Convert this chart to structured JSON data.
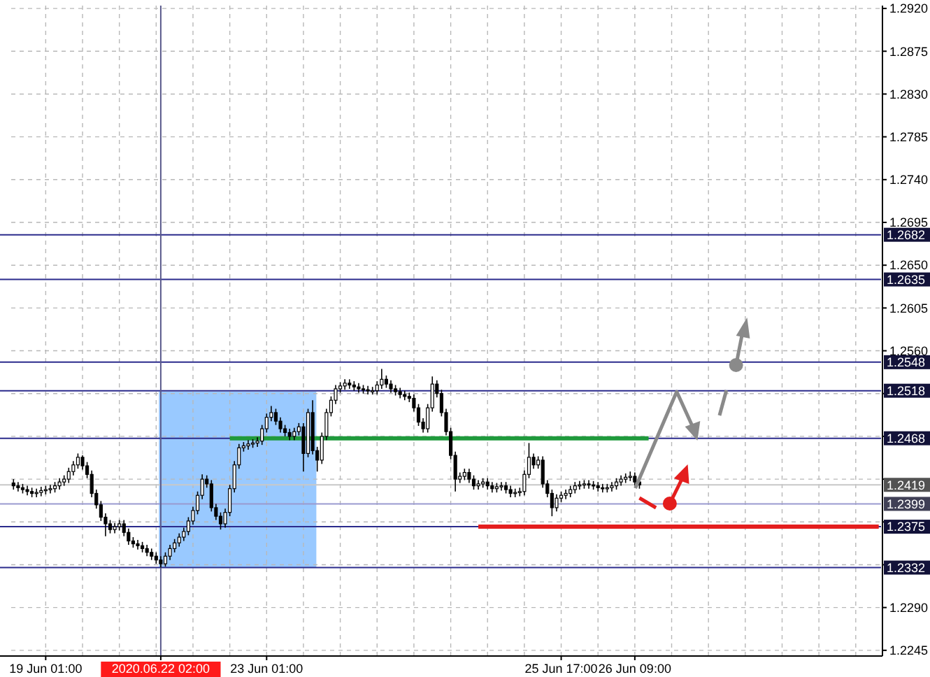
{
  "chart_data": {
    "type": "candlestick",
    "categories": [
      null,
      null,
      null,
      null,
      null,
      null,
      null,
      "19 Jun 01:00",
      null,
      null,
      null,
      null,
      null,
      null,
      null,
      null,
      null,
      null,
      null,
      null,
      null,
      null,
      null,
      null,
      null,
      null,
      null,
      null,
      null,
      null,
      null,
      null,
      "2020.06.22 02:00",
      null,
      null,
      null,
      null,
      null,
      null,
      null,
      null,
      null,
      null,
      null,
      null,
      null,
      null,
      null,
      null,
      null,
      null,
      null,
      null,
      null,
      null,
      "23 Jun 01:00",
      null,
      null,
      null,
      null,
      null,
      null,
      null,
      null,
      null,
      null,
      null,
      null,
      null,
      null,
      null,
      null,
      null,
      null,
      null,
      null,
      null,
      null,
      null,
      null,
      null,
      null,
      null,
      null,
      null,
      null,
      null,
      null,
      null,
      null,
      null,
      null,
      null,
      null,
      null,
      null,
      null,
      null,
      null,
      null,
      null,
      null,
      null,
      null,
      null,
      null,
      null,
      null,
      null,
      null,
      null,
      null,
      null,
      null,
      null,
      null,
      null,
      null,
      null,
      "25 Jun 17:00",
      null,
      null,
      null,
      null,
      null,
      null,
      null,
      null,
      null,
      null,
      null,
      null,
      null,
      null,
      null,
      "26 Jun 09:00",
      null,
      null,
      null,
      null,
      null,
      null,
      null,
      null,
      null,
      null,
      null,
      null,
      null,
      null,
      null,
      null,
      null,
      null,
      null,
      null,
      null,
      null,
      null,
      null,
      null,
      null,
      null,
      null,
      null,
      null,
      null,
      null,
      null,
      null,
      null,
      null,
      null,
      null,
      null,
      null,
      null,
      null,
      null,
      null,
      null,
      null,
      null,
      null,
      null,
      null,
      null,
      null,
      null
    ],
    "ohlc": [
      [
        1.2421,
        1.2425,
        1.2414,
        1.2418
      ],
      [
        1.2418,
        1.2422,
        1.2412,
        1.2416
      ],
      [
        1.2416,
        1.242,
        1.241,
        1.2414
      ],
      [
        1.2414,
        1.2418,
        1.2408,
        1.2412
      ],
      [
        1.2412,
        1.2416,
        1.2406,
        1.241
      ],
      [
        1.241,
        1.2415,
        1.2406,
        1.2411
      ],
      [
        1.2411,
        1.2417,
        1.2407,
        1.2413
      ],
      [
        1.2413,
        1.2418,
        1.2409,
        1.2414
      ],
      [
        1.2414,
        1.2419,
        1.241,
        1.2415
      ],
      [
        1.2415,
        1.2422,
        1.2411,
        1.2418
      ],
      [
        1.2418,
        1.2426,
        1.2414,
        1.2422
      ],
      [
        1.2422,
        1.2429,
        1.2418,
        1.2425
      ],
      [
        1.2425,
        1.2437,
        1.2421,
        1.2433
      ],
      [
        1.2433,
        1.2444,
        1.2429,
        1.244
      ],
      [
        1.244,
        1.2452,
        1.2436,
        1.2448
      ],
      [
        1.2448,
        1.245,
        1.2435,
        1.2439
      ],
      [
        1.2439,
        1.2443,
        1.2426,
        1.243
      ],
      [
        1.243,
        1.2434,
        1.2406,
        1.241
      ],
      [
        1.241,
        1.2414,
        1.2394,
        1.2398
      ],
      [
        1.2398,
        1.2402,
        1.2381,
        1.2385
      ],
      [
        1.2385,
        1.2389,
        1.2365,
        1.2378
      ],
      [
        1.2378,
        1.2382,
        1.2368,
        1.2372
      ],
      [
        1.2372,
        1.2379,
        1.2368,
        1.2375
      ],
      [
        1.2375,
        1.2382,
        1.2371,
        1.2378
      ],
      [
        1.2378,
        1.2382,
        1.2365,
        1.2369
      ],
      [
        1.2369,
        1.2373,
        1.2356,
        1.236
      ],
      [
        1.236,
        1.2364,
        1.2353,
        1.2357
      ],
      [
        1.2357,
        1.2361,
        1.2351,
        1.2355
      ],
      [
        1.2355,
        1.2359,
        1.2348,
        1.2352
      ],
      [
        1.2352,
        1.2356,
        1.2344,
        1.2348
      ],
      [
        1.2348,
        1.2352,
        1.234,
        1.2344
      ],
      [
        1.2344,
        1.2348,
        1.2336,
        1.234
      ],
      [
        1.234,
        1.2344,
        1.2332,
        1.2336
      ],
      [
        1.2336,
        1.2348,
        1.2333,
        1.2344
      ],
      [
        1.2344,
        1.2356,
        1.234,
        1.2352
      ],
      [
        1.2352,
        1.2362,
        1.2348,
        1.2358
      ],
      [
        1.2358,
        1.2368,
        1.2354,
        1.2364
      ],
      [
        1.2364,
        1.2374,
        1.236,
        1.237
      ],
      [
        1.237,
        1.2385,
        1.2366,
        1.2381
      ],
      [
        1.2381,
        1.2396,
        1.2377,
        1.2392
      ],
      [
        1.2392,
        1.2412,
        1.2388,
        1.2408
      ],
      [
        1.2408,
        1.243,
        1.2404,
        1.2425
      ],
      [
        1.2425,
        1.2429,
        1.2416,
        1.242
      ],
      [
        1.242,
        1.2424,
        1.2391,
        1.2395
      ],
      [
        1.2395,
        1.2399,
        1.2382,
        1.2386
      ],
      [
        1.2386,
        1.239,
        1.2372,
        1.2378
      ],
      [
        1.2378,
        1.2394,
        1.2374,
        1.239
      ],
      [
        1.239,
        1.2419,
        1.2386,
        1.2415
      ],
      [
        1.2415,
        1.2444,
        1.2411,
        1.244
      ],
      [
        1.244,
        1.2462,
        1.2436,
        1.2458
      ],
      [
        1.2458,
        1.2464,
        1.2454,
        1.246
      ],
      [
        1.246,
        1.2466,
        1.2456,
        1.2462
      ],
      [
        1.2462,
        1.2467,
        1.2458,
        1.2463
      ],
      [
        1.2463,
        1.2469,
        1.2459,
        1.2465
      ],
      [
        1.2465,
        1.2482,
        1.2461,
        1.2478
      ],
      [
        1.2478,
        1.2494,
        1.2474,
        1.249
      ],
      [
        1.249,
        1.2502,
        1.2486,
        1.2495
      ],
      [
        1.2495,
        1.2499,
        1.2482,
        1.2486
      ],
      [
        1.2486,
        1.249,
        1.2474,
        1.2478
      ],
      [
        1.2478,
        1.2482,
        1.247,
        1.2474
      ],
      [
        1.2474,
        1.2478,
        1.2466,
        1.247
      ],
      [
        1.247,
        1.2479,
        1.2466,
        1.2475
      ],
      [
        1.2475,
        1.2484,
        1.2471,
        1.248
      ],
      [
        1.248,
        1.2484,
        1.2433,
        1.2452
      ],
      [
        1.2452,
        1.2499,
        1.2448,
        1.2495
      ],
      [
        1.2495,
        1.2508,
        1.2451,
        1.2455
      ],
      [
        1.2455,
        1.2459,
        1.2433,
        1.2445
      ],
      [
        1.2445,
        1.2474,
        1.2441,
        1.247
      ],
      [
        1.247,
        1.2499,
        1.2466,
        1.2495
      ],
      [
        1.2495,
        1.2512,
        1.2491,
        1.2508
      ],
      [
        1.2508,
        1.2524,
        1.2504,
        1.252
      ],
      [
        1.252,
        1.2527,
        1.2516,
        1.2523
      ],
      [
        1.2523,
        1.253,
        1.2519,
        1.2526
      ],
      [
        1.2526,
        1.253,
        1.252,
        1.2524
      ],
      [
        1.2524,
        1.2528,
        1.2518,
        1.2522
      ],
      [
        1.2522,
        1.2526,
        1.2516,
        1.252
      ],
      [
        1.252,
        1.2524,
        1.2515,
        1.2519
      ],
      [
        1.2519,
        1.2523,
        1.2514,
        1.2518
      ],
      [
        1.2518,
        1.2522,
        1.2514,
        1.2518
      ],
      [
        1.2518,
        1.2528,
        1.2514,
        1.2524
      ],
      [
        1.2524,
        1.2541,
        1.252,
        1.253
      ],
      [
        1.253,
        1.2534,
        1.2521,
        1.2525
      ],
      [
        1.2525,
        1.2529,
        1.2516,
        1.252
      ],
      [
        1.252,
        1.2524,
        1.2513,
        1.2517
      ],
      [
        1.2517,
        1.2521,
        1.251,
        1.2514
      ],
      [
        1.2514,
        1.2518,
        1.2508,
        1.2512
      ],
      [
        1.2512,
        1.2516,
        1.2506,
        1.251
      ],
      [
        1.251,
        1.2514,
        1.2496,
        1.25
      ],
      [
        1.25,
        1.2504,
        1.2481,
        1.2485
      ],
      [
        1.2485,
        1.2489,
        1.2474,
        1.2478
      ],
      [
        1.2478,
        1.2504,
        1.2474,
        1.25
      ],
      [
        1.25,
        1.2533,
        1.2496,
        1.2525
      ],
      [
        1.2525,
        1.2529,
        1.2511,
        1.2515
      ],
      [
        1.2515,
        1.2519,
        1.2491,
        1.2495
      ],
      [
        1.2495,
        1.2499,
        1.2471,
        1.2475
      ],
      [
        1.2475,
        1.2479,
        1.2446,
        1.245
      ],
      [
        1.245,
        1.2454,
        1.2412,
        1.2425
      ],
      [
        1.2425,
        1.2432,
        1.2421,
        1.2428
      ],
      [
        1.2428,
        1.2436,
        1.2424,
        1.2432
      ],
      [
        1.2432,
        1.2436,
        1.2421,
        1.2425
      ],
      [
        1.2425,
        1.2429,
        1.2414,
        1.2418
      ],
      [
        1.2418,
        1.2424,
        1.2414,
        1.242
      ],
      [
        1.242,
        1.2426,
        1.2416,
        1.2422
      ],
      [
        1.2422,
        1.2426,
        1.2414,
        1.2418
      ],
      [
        1.2418,
        1.2422,
        1.2411,
        1.2415
      ],
      [
        1.2415,
        1.2421,
        1.2411,
        1.2417
      ],
      [
        1.2417,
        1.2422,
        1.2413,
        1.2418
      ],
      [
        1.2418,
        1.2422,
        1.241,
        1.2414
      ],
      [
        1.2414,
        1.2418,
        1.2406,
        1.241
      ],
      [
        1.241,
        1.2415,
        1.2406,
        1.2411
      ],
      [
        1.2411,
        1.2416,
        1.2407,
        1.2412
      ],
      [
        1.2412,
        1.2434,
        1.2408,
        1.243
      ],
      [
        1.243,
        1.2463,
        1.2426,
        1.2448
      ],
      [
        1.2448,
        1.2452,
        1.2436,
        1.244
      ],
      [
        1.244,
        1.2449,
        1.2436,
        1.2445
      ],
      [
        1.2445,
        1.2449,
        1.2416,
        1.242
      ],
      [
        1.242,
        1.2424,
        1.2406,
        1.241
      ],
      [
        1.241,
        1.2414,
        1.2386,
        1.2395
      ],
      [
        1.2395,
        1.2409,
        1.2391,
        1.2405
      ],
      [
        1.2405,
        1.2412,
        1.2401,
        1.2408
      ],
      [
        1.2408,
        1.2414,
        1.2404,
        1.241
      ],
      [
        1.241,
        1.2418,
        1.2406,
        1.2414
      ],
      [
        1.2414,
        1.2422,
        1.241,
        1.2418
      ],
      [
        1.2418,
        1.2423,
        1.2414,
        1.2419
      ],
      [
        1.2419,
        1.2424,
        1.2415,
        1.242
      ],
      [
        1.242,
        1.2424,
        1.2415,
        1.2419
      ],
      [
        1.2419,
        1.2423,
        1.2414,
        1.2418
      ],
      [
        1.2418,
        1.2422,
        1.2412,
        1.2416
      ],
      [
        1.2416,
        1.242,
        1.2411,
        1.2415
      ],
      [
        1.2415,
        1.242,
        1.2411,
        1.2416
      ],
      [
        1.2416,
        1.2422,
        1.2412,
        1.2418
      ],
      [
        1.2418,
        1.2426,
        1.2414,
        1.2422
      ],
      [
        1.2422,
        1.2429,
        1.2418,
        1.2425
      ],
      [
        1.2425,
        1.2431,
        1.2421,
        1.2427
      ],
      [
        1.2427,
        1.2433,
        1.2423,
        1.2428
      ],
      [
        1.2428,
        1.2432,
        1.2418,
        1.2422
      ],
      [
        1.2422,
        1.2426,
        1.2415,
        1.2419
      ],
      null,
      null,
      null,
      null,
      null,
      null,
      null,
      null,
      null,
      null,
      null,
      null,
      null,
      null,
      null,
      null,
      null,
      null,
      null,
      null,
      null,
      null,
      null,
      null,
      null,
      null,
      null,
      null,
      null,
      null,
      null,
      null,
      null,
      null,
      null,
      null,
      null,
      null,
      null,
      null,
      null,
      null,
      null,
      null,
      null,
      null,
      null,
      null,
      null,
      null,
      null,
      null
    ],
    "series": [
      {
        "type": "line",
        "color": "#1f9a3c",
        "values": [
          null,
          null,
          null,
          null,
          null,
          null,
          null,
          null,
          null,
          null,
          null,
          null,
          null,
          null,
          null,
          null,
          null,
          null,
          null,
          null,
          null,
          null,
          null,
          null,
          null,
          null,
          null,
          null,
          null,
          null,
          null,
          null,
          null,
          null,
          null,
          null,
          null,
          null,
          null,
          null,
          null,
          null,
          null,
          null,
          null,
          null,
          null,
          1.2468,
          1.2468,
          1.2468,
          1.2468,
          1.2468,
          1.2468,
          1.2468,
          1.2468,
          1.2468,
          1.2468,
          1.2468,
          1.2468,
          1.2468,
          1.2468,
          1.2468,
          1.2468,
          1.2468,
          1.2468,
          1.2468,
          1.2468,
          1.2468,
          1.2468,
          1.2468,
          1.2468,
          1.2468,
          1.2468,
          1.2468,
          1.2468,
          1.2468,
          1.2468,
          1.2468,
          1.2468,
          1.2468,
          1.2468,
          1.2468,
          1.2468,
          1.2468,
          1.2468,
          1.2468,
          1.2468,
          1.2468,
          1.2468,
          1.2468,
          1.2468,
          1.2468,
          1.2468,
          1.2468,
          1.2468,
          1.2468,
          1.2468,
          1.2468,
          1.2468,
          1.2468,
          1.2468,
          1.2468,
          1.2468,
          1.2468,
          1.2468,
          1.2468,
          1.2468,
          1.2468,
          1.2468,
          1.2468,
          1.2468,
          1.2468,
          1.2468,
          1.2468,
          1.2468,
          1.2468,
          1.2468,
          1.2468,
          1.2468,
          1.2468,
          1.2468,
          1.2468,
          1.2468,
          1.2468,
          1.2468,
          1.2468,
          1.2468,
          1.2468,
          1.2468,
          1.2468,
          1.2468,
          1.2468,
          1.2468,
          1.2468,
          1.2468,
          1.2468,
          1.2468,
          1.2468,
          1.2468,
          null,
          null,
          null,
          null,
          null,
          null,
          null,
          null,
          null,
          null,
          null,
          null,
          null,
          null,
          null,
          null,
          null,
          null,
          null,
          null,
          null,
          null,
          null,
          null,
          null,
          null,
          null,
          null,
          null,
          null,
          null,
          null,
          null,
          null,
          null,
          null,
          null,
          null,
          null,
          null,
          null,
          null,
          null,
          null,
          null,
          null,
          null,
          null,
          null,
          null
        ]
      },
      {
        "type": "line",
        "color": "#e41e1e",
        "values": [
          null,
          null,
          null,
          null,
          null,
          null,
          null,
          null,
          null,
          null,
          null,
          null,
          null,
          null,
          null,
          null,
          null,
          null,
          null,
          null,
          null,
          null,
          null,
          null,
          null,
          null,
          null,
          null,
          null,
          null,
          null,
          null,
          null,
          null,
          null,
          null,
          null,
          null,
          null,
          null,
          null,
          null,
          null,
          null,
          null,
          null,
          null,
          null,
          null,
          null,
          null,
          null,
          null,
          null,
          null,
          null,
          null,
          null,
          null,
          null,
          null,
          null,
          null,
          null,
          null,
          null,
          null,
          null,
          null,
          null,
          null,
          null,
          null,
          null,
          null,
          null,
          null,
          null,
          null,
          null,
          null,
          null,
          null,
          null,
          null,
          null,
          null,
          null,
          null,
          null,
          null,
          null,
          null,
          null,
          null,
          null,
          null,
          null,
          null,
          null,
          null,
          1.2375,
          1.2375,
          1.2375,
          1.2375,
          1.2375,
          1.2375,
          1.2375,
          1.2375,
          1.2375,
          1.2375,
          1.2375,
          1.2375,
          1.2375,
          1.2375,
          1.2375,
          1.2375,
          1.2375,
          1.2375,
          1.2375,
          1.2375,
          1.2375,
          1.2375,
          1.2375,
          1.2375,
          1.2375,
          1.2375,
          1.2375,
          1.2375,
          1.2375,
          1.2375,
          1.2375,
          1.2375,
          1.2375,
          1.2375,
          1.2375,
          1.2375,
          1.2375,
          1.2375,
          1.2375,
          1.2375,
          1.2375,
          1.2375,
          1.2375,
          1.2375,
          1.2375,
          1.2375,
          1.2375,
          1.2375,
          1.2375,
          1.2375,
          1.2375,
          1.2375,
          1.2375,
          1.2375,
          1.2375,
          1.2375,
          1.2375,
          1.2375,
          1.2375,
          1.2375,
          1.2375,
          1.2375,
          1.2375,
          1.2375,
          1.2375,
          1.2375,
          1.2375,
          1.2375,
          1.2375,
          1.2375,
          1.2375,
          1.2375,
          1.2375,
          1.2375,
          1.2375,
          1.2375,
          1.2375,
          1.2375,
          1.2375,
          1.2375,
          1.2375,
          1.2375,
          1.2375,
          1.2375,
          1.2375,
          1.2375,
          1.2375,
          1.2375
        ]
      }
    ],
    "ylim": [
      1.2239,
      1.2923
    ],
    "yticks": [
      {
        "value": 1.292,
        "label": "1.2920"
      },
      {
        "value": 1.2875,
        "label": "1.2875"
      },
      {
        "value": 1.283,
        "label": "1.2830"
      },
      {
        "value": 1.2785,
        "label": "1.2785"
      },
      {
        "value": 1.274,
        "label": "1.2740"
      },
      {
        "value": 1.2695,
        "label": "1.2695"
      },
      {
        "value": 1.265,
        "label": "1.2650"
      },
      {
        "value": 1.2605,
        "label": "1.2605"
      },
      {
        "value": 1.256,
        "label": "1.2560"
      },
      {
        "value": 1.2515,
        "label": null
      },
      {
        "value": 1.247,
        "label": null
      },
      {
        "value": 1.2425,
        "label": null
      },
      {
        "value": 1.238,
        "label": null
      },
      {
        "value": 1.2335,
        "label": null
      },
      {
        "value": 1.229,
        "label": "1.2290"
      },
      {
        "value": 1.2245,
        "label": "1.2245"
      }
    ],
    "grid": true,
    "ref_lines": [
      {
        "axis": "y",
        "value": 1.2682,
        "label": "1.2682",
        "color": "#2b2b8c"
      },
      {
        "axis": "y",
        "value": 1.2635,
        "label": "1.2635",
        "color": "#2b2b8c"
      },
      {
        "axis": "y",
        "value": 1.2548,
        "label": "1.2548",
        "color": "#2b2b8c"
      },
      {
        "axis": "y",
        "value": 1.2518,
        "label": "1.2518",
        "color": "#2b2b8c"
      },
      {
        "axis": "y",
        "value": 1.2468,
        "label": "1.2468",
        "color": "#2b2b8c"
      },
      {
        "axis": "y",
        "value": 1.2419,
        "label": "1.2419",
        "color": "#c8c8c8"
      },
      {
        "axis": "y",
        "value": 1.2399,
        "label": "1.2399",
        "color": "#9a9ad0"
      },
      {
        "axis": "y",
        "value": 1.2375,
        "label": "1.2375",
        "color": "#2b2b8c"
      },
      {
        "axis": "y",
        "value": 1.2332,
        "label": "1.2332",
        "color": "#2b2b8c"
      },
      {
        "axis": "x",
        "value": "2020.06.22 02:00",
        "color": "#5a5a8c"
      }
    ]
  }
}
